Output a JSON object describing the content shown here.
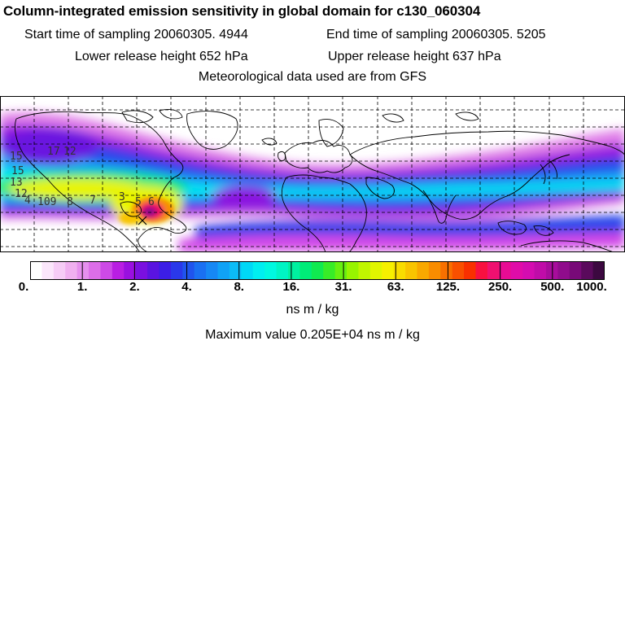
{
  "header": {
    "title": "Column-integrated emission sensitivity in global domain for c130_060304",
    "start_label": "Start time of sampling 20060305.  4944",
    "end_label": "End time of sampling 20060305.  5205",
    "lower_label": "Lower release height  652 hPa",
    "upper_label": "Upper release height  637 hPa",
    "met_label": "Meteorological data used are from GFS"
  },
  "colorbar": {
    "tick_labels": [
      "0.",
      "1.",
      "2.",
      "4.",
      "8.",
      "16.",
      "31.",
      "63.",
      "125.",
      "250.",
      "500.",
      "1000."
    ],
    "colors": [
      "#ffffff",
      "#fbe6fb",
      "#f6ccf6",
      "#f0b0f0",
      "#e690ee",
      "#dc6ee8",
      "#cd4ae6",
      "#b91ee2",
      "#9a10e0",
      "#7a10e0",
      "#5a14e0",
      "#3c1ee6",
      "#2a38ea",
      "#2054ee",
      "#1a70f2",
      "#1688f4",
      "#10a2f6",
      "#0cbcf6",
      "#00d8f6",
      "#00eef0",
      "#00f8e0",
      "#00f4c4",
      "#00f0a0",
      "#00ec78",
      "#10ea50",
      "#38ec28",
      "#68f010",
      "#98f400",
      "#c0f600",
      "#e0f600",
      "#f6f000",
      "#f8dc00",
      "#f8c400",
      "#f8a800",
      "#f88c00",
      "#f87000",
      "#f85000",
      "#f83000",
      "#f81040",
      "#f01070",
      "#e80c94",
      "#e00ca8",
      "#d40cb0",
      "#c00ca8",
      "#a80c9c",
      "#900c8c",
      "#780a78",
      "#5a0a5c",
      "#3c0840"
    ],
    "unit": "ns m / kg"
  },
  "max_value": "Maximum value  0.205E+04 ns m / kg",
  "map": {
    "colors": {
      "white": "#ffffff",
      "light_pink": "#f4c8f4",
      "magenta": "#d24ae8",
      "purple": "#8a12e0",
      "blue": "#2a3aea",
      "sky": "#14a0f6",
      "cyan": "#00e6f0",
      "green": "#00ea70",
      "yellow": "#e8f400",
      "orange": "#f88c00",
      "red": "#f01060",
      "coast": "#000000"
    },
    "contour_labels": [
      "15",
      "17",
      "13",
      "12",
      "4",
      "109",
      "8",
      "7",
      "3",
      "5",
      "6",
      "12",
      "15"
    ]
  }
}
